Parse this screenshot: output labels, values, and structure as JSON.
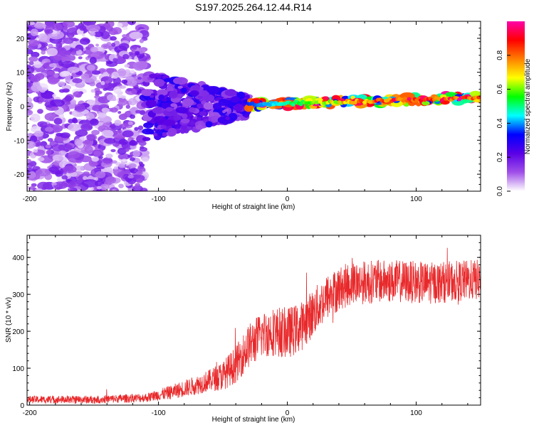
{
  "page_title": "S197.2025.264.12.44.R14",
  "colors": {
    "snr_line": "#e8292b",
    "axis": "#000000"
  },
  "chart_data": [
    {
      "type": "heatmap",
      "title": "S197.2025.264.12.44.R14",
      "xlabel": "Height of straight line (km)",
      "ylabel": "Frequency (Hz)",
      "xlim": [
        -202,
        150
      ],
      "ylim": [
        -25,
        25
      ],
      "xticks": [
        -200,
        -100,
        0,
        100
      ],
      "yticks": [
        -20,
        -10,
        0,
        10,
        20
      ],
      "xtick_labels": [
        "-200",
        "-100",
        "0",
        "100"
      ],
      "ytick_labels": [
        "-20",
        "-10",
        "0",
        "10",
        "20"
      ],
      "colorbar": {
        "label": "Normalized spectral amplitude",
        "range": [
          0.0,
          1.0
        ],
        "ticks": [
          0.0,
          0.2,
          0.4,
          0.6,
          0.8
        ],
        "tick_labels": [
          "0.0",
          "0.2",
          "0.4",
          "0.6",
          "0.8"
        ],
        "stops": [
          "#ffffff",
          "#a050e8",
          "#5a00e6",
          "#0000ff",
          "#00ffff",
          "#00ff00",
          "#ffff00",
          "#ff8000",
          "#ff0000",
          "#ff00aa"
        ]
      },
      "description_regions": [
        {
          "x_range": [
            -202,
            -110
          ],
          "freq_spread": 25,
          "amplitude": [
            0.02,
            0.2
          ]
        },
        {
          "x_range": [
            -110,
            -30
          ],
          "freq_spread": 10,
          "amplitude": [
            0.1,
            0.3
          ]
        },
        {
          "x_range": [
            -30,
            150
          ],
          "freq_center": [
            0.5,
            2.5
          ],
          "freq_spread": 1.2,
          "amplitude": [
            0.3,
            1.0
          ]
        }
      ]
    },
    {
      "type": "line",
      "xlabel": "Height of straight line (km)",
      "ylabel": "SNR (10 * v/v)",
      "xlim": [
        -202,
        150
      ],
      "ylim": [
        0,
        460
      ],
      "xticks": [
        -200,
        -100,
        0,
        100
      ],
      "yticks": [
        0,
        100,
        200,
        300,
        400
      ],
      "xtick_labels": [
        "-200",
        "-100",
        "0",
        "100"
      ],
      "ytick_labels": [
        "0",
        "100",
        "200",
        "300",
        "400"
      ],
      "trend_points": [
        {
          "x": -202,
          "y": 15
        },
        {
          "x": -150,
          "y": 15
        },
        {
          "x": -110,
          "y": 20
        },
        {
          "x": -90,
          "y": 35
        },
        {
          "x": -70,
          "y": 55
        },
        {
          "x": -50,
          "y": 80
        },
        {
          "x": -40,
          "y": 110
        },
        {
          "x": -30,
          "y": 160
        },
        {
          "x": -20,
          "y": 190
        },
        {
          "x": -10,
          "y": 200
        },
        {
          "x": 0,
          "y": 195
        },
        {
          "x": 10,
          "y": 210
        },
        {
          "x": 20,
          "y": 250
        },
        {
          "x": 30,
          "y": 290
        },
        {
          "x": 40,
          "y": 315
        },
        {
          "x": 50,
          "y": 330
        },
        {
          "x": 70,
          "y": 335
        },
        {
          "x": 90,
          "y": 335
        },
        {
          "x": 110,
          "y": 330
        },
        {
          "x": 130,
          "y": 335
        },
        {
          "x": 150,
          "y": 340
        }
      ],
      "noise_amplitude": [
        {
          "x": -202,
          "a": 10
        },
        {
          "x": -110,
          "a": 12
        },
        {
          "x": -60,
          "a": 30
        },
        {
          "x": -30,
          "a": 60
        },
        {
          "x": 0,
          "a": 70
        },
        {
          "x": 40,
          "a": 60
        },
        {
          "x": 150,
          "a": 55
        }
      ]
    }
  ]
}
